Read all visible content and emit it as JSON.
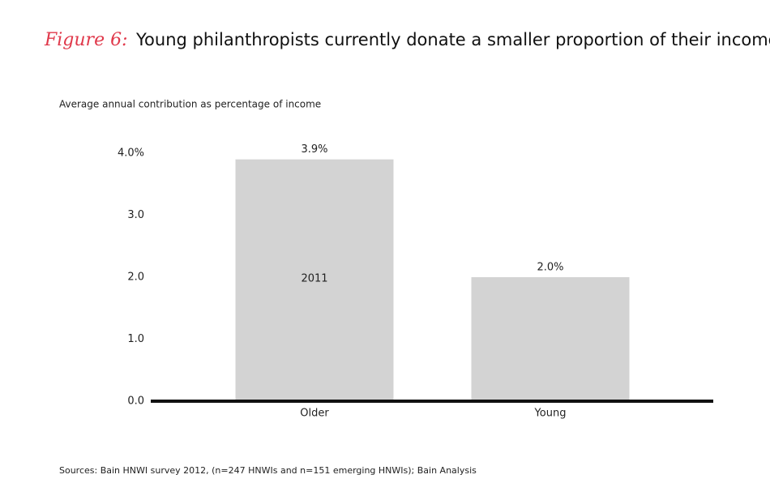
{
  "chart_data": {
    "type": "bar",
    "figure_label": "Figure 6:",
    "title": "Young philanthropists currently donate a smaller proportion of their income",
    "y_axis_label": "Average annual contribution as percentage of income",
    "categories": [
      "Older",
      "Young"
    ],
    "values": [
      3.9,
      2.0
    ],
    "value_labels": [
      "3.9%",
      "2.0%"
    ],
    "color": "#d3d3d3",
    "annotation": "2011",
    "ylim": [
      0,
      4
    ],
    "yticks": [
      {
        "value": 0,
        "label": "0.0"
      },
      {
        "value": 1,
        "label": "1.0"
      },
      {
        "value": 2,
        "label": "2.0"
      },
      {
        "value": 3,
        "label": "3.0"
      },
      {
        "value": 4,
        "label": "4.0%"
      }
    ],
    "grid": false,
    "source": "Sources: Bain HNWI survey 2012, (n=247 HNWIs and n=151 emerging HNWIs); Bain Analysis"
  }
}
